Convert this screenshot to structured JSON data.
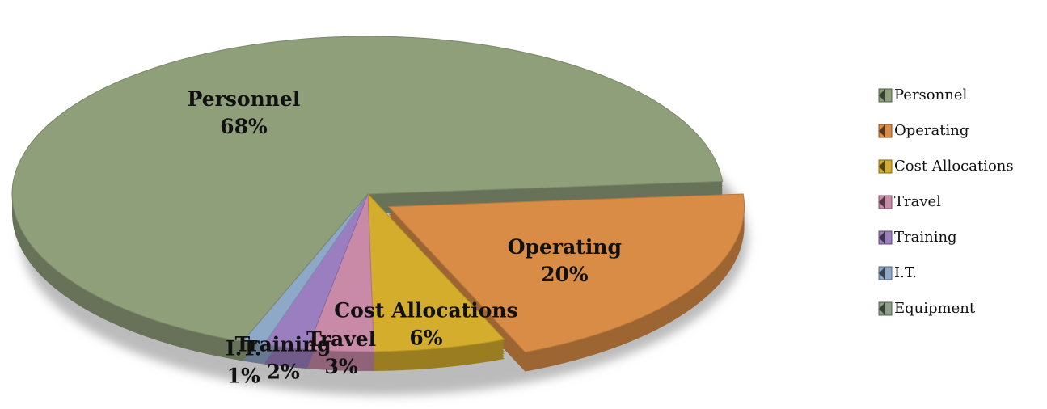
{
  "chart_data": {
    "type": "pie",
    "categories": [
      "Personnel",
      "Operating",
      "Cost Allocations",
      "Travel",
      "Training",
      "I.T.",
      "Equipment"
    ],
    "values": [
      68,
      20,
      6,
      3,
      2,
      1,
      0
    ],
    "value_labels": [
      "68%",
      "20%",
      "6%",
      "3%",
      "2%",
      "1%",
      null
    ],
    "colors": [
      "#8f9f7a",
      "#d98c45",
      "#d4ad2c",
      "#c98aa8",
      "#9b7ec0",
      "#8ea8c8",
      "#8ca08a"
    ],
    "legend": "right"
  }
}
